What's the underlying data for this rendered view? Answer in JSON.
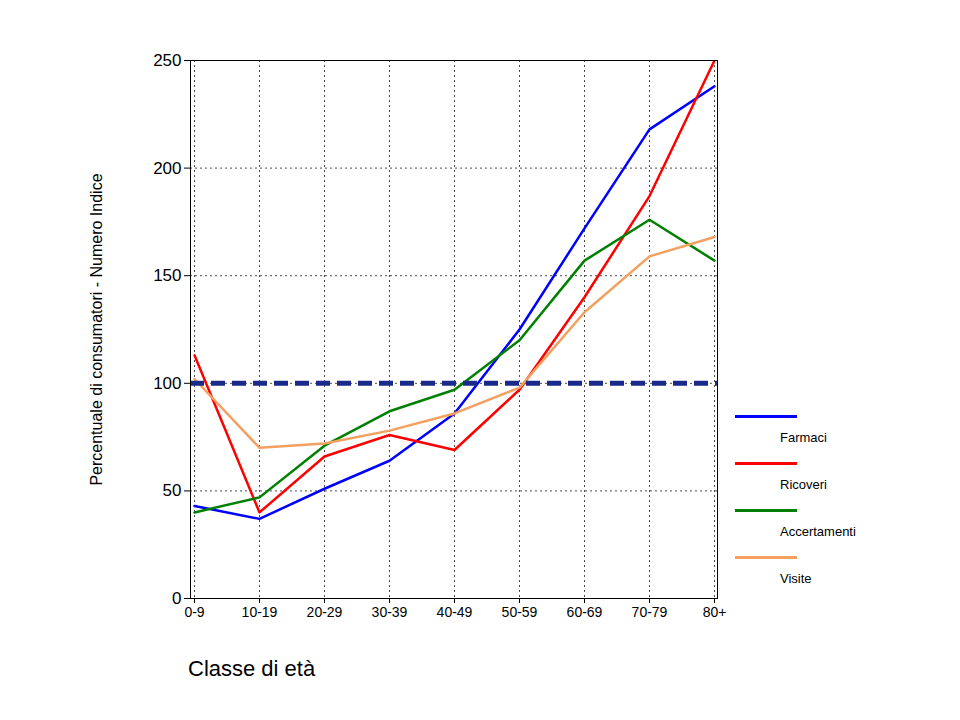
{
  "chart_data": {
    "type": "line",
    "x_label": "Classe di età",
    "y_label": "Percentuale di consumatori - Numero Indice",
    "categories": [
      "0-9",
      "10-19",
      "20-29",
      "30-39",
      "40-49",
      "50-59",
      "60-69",
      "70-79",
      "80+"
    ],
    "series": [
      {
        "name": "Farmaci",
        "color": "#0000ff",
        "values": [
          43,
          37,
          51,
          64,
          86,
          125,
          172,
          218,
          238
        ]
      },
      {
        "name": "Ricoveri",
        "color": "#ff0000",
        "values": [
          113,
          40,
          66,
          76,
          69,
          97,
          140,
          187,
          250
        ]
      },
      {
        "name": "Accertamenti",
        "color": "#008000",
        "values": [
          40,
          47,
          71,
          87,
          97,
          120,
          157,
          176,
          157
        ]
      },
      {
        "name": "Visite",
        "color": "#f4a060",
        "values": [
          102,
          70,
          72,
          78,
          86,
          98,
          133,
          159,
          168
        ]
      }
    ],
    "reference_line": 100,
    "ylim": [
      0,
      250
    ],
    "yticks": [
      0,
      50,
      100,
      150,
      200,
      250
    ],
    "grid": true,
    "legend": "right"
  }
}
